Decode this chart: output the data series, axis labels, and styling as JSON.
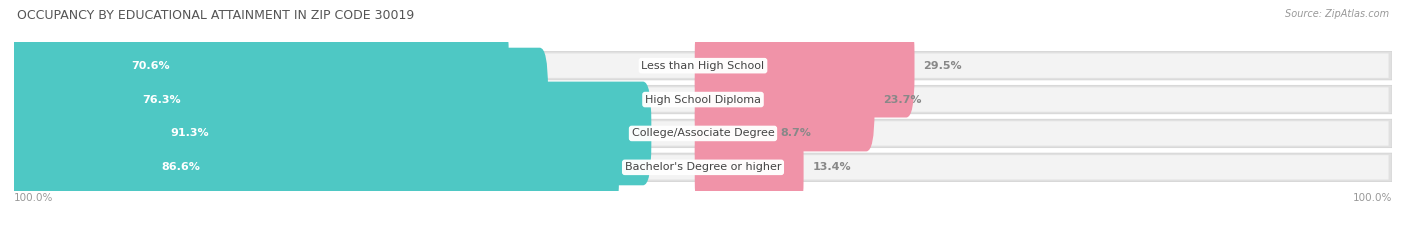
{
  "title": "OCCUPANCY BY EDUCATIONAL ATTAINMENT IN ZIP CODE 30019",
  "source": "Source: ZipAtlas.com",
  "categories": [
    "Less than High School",
    "High School Diploma",
    "College/Associate Degree",
    "Bachelor's Degree or higher"
  ],
  "owner_pct": [
    70.6,
    76.3,
    91.3,
    86.6
  ],
  "renter_pct": [
    29.5,
    23.7,
    8.7,
    13.4
  ],
  "owner_color": "#4EC8C4",
  "renter_color": "#F093A8",
  "row_bg_color": "#EBEBEB",
  "row_inner_color": "#F7F7F7",
  "title_fontsize": 9,
  "bar_label_fontsize": 8,
  "cat_label_fontsize": 8,
  "tick_fontsize": 7.5,
  "legend_fontsize": 8,
  "source_fontsize": 7,
  "axis_label_left": "100.0%",
  "axis_label_right": "100.0%"
}
